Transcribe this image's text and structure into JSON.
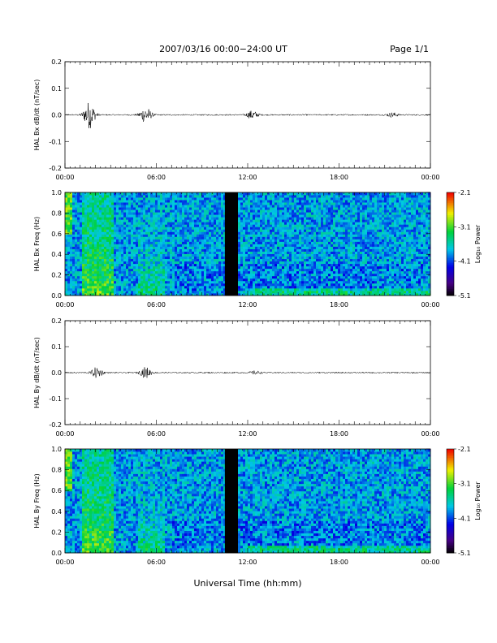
{
  "header": {
    "title": "2007/03/16  00:00−24:00 UT",
    "page": "Page 1/1"
  },
  "xlabel": "Universal Time (hh:mm)",
  "x_ticks": [
    "00:00",
    "06:00",
    "12:00",
    "18:00",
    "00:00"
  ],
  "colorbar": {
    "label": "Log₁₀ Power",
    "ticks": [
      "-2.1",
      "-3.1",
      "-4.1",
      "-5.1"
    ]
  },
  "chart_data": [
    {
      "type": "line",
      "ylabel": "HAL Bx dB/dt (nT/sec)",
      "ylim": [
        -0.2,
        0.2
      ],
      "y_ticks": [
        "0.2",
        "0.1",
        "0.0",
        "-0.1",
        "-0.2"
      ],
      "x_range_hours": [
        0,
        24
      ],
      "activity": [
        {
          "x": 1.6,
          "amp": 0.05
        },
        {
          "x": 5.3,
          "amp": 0.03
        },
        {
          "x": 12.3,
          "amp": 0.015
        },
        {
          "x": 21.5,
          "amp": 0.008
        }
      ]
    },
    {
      "type": "heatmap",
      "ylabel": "HAL Bx Freq (Hz)",
      "ylim": [
        0,
        1.0
      ],
      "y_ticks": [
        "1.0",
        "0.8",
        "0.6",
        "0.4",
        "0.2",
        "0.0"
      ],
      "x_range_hours": [
        0,
        24
      ],
      "zlim": [
        -5.1,
        -2.1
      ],
      "data_gap_hours": [
        10.5,
        11.3
      ]
    },
    {
      "type": "line",
      "ylabel": "HAL By dB/dt (nT/sec)",
      "ylim": [
        -0.2,
        0.2
      ],
      "y_ticks": [
        "0.2",
        "0.1",
        "0.0",
        "-0.1",
        "-0.2"
      ],
      "x_range_hours": [
        0,
        24
      ],
      "activity": [
        {
          "x": 2.1,
          "amp": 0.02
        },
        {
          "x": 5.3,
          "amp": 0.02
        },
        {
          "x": 12.5,
          "amp": 0.006
        }
      ]
    },
    {
      "type": "heatmap",
      "ylabel": "HAL By Freq (Hz)",
      "ylim": [
        0,
        1.0
      ],
      "y_ticks": [
        "1.0",
        "0.8",
        "0.6",
        "0.4",
        "0.2",
        "0.0"
      ],
      "x_range_hours": [
        0,
        24
      ],
      "zlim": [
        -5.1,
        -2.1
      ],
      "data_gap_hours": [
        10.5,
        11.3
      ]
    }
  ]
}
